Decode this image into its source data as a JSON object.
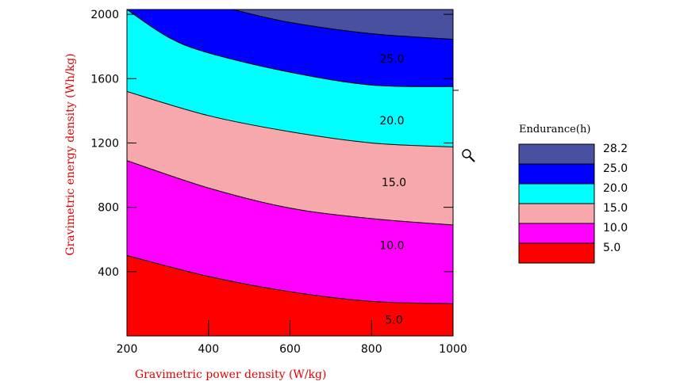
{
  "chart_data": {
    "type": "contour",
    "title": "",
    "xlabel": "Gravimetric power density (W/kg)",
    "ylabel": "Gravimetric energy density (Wh/kg)",
    "xlim": [
      200,
      1000
    ],
    "ylim": [
      0,
      2030
    ],
    "xticks": [
      200,
      400,
      600,
      800,
      1000
    ],
    "yticks": [
      400,
      800,
      1200,
      1600,
      2000
    ],
    "contour_levels": [
      5.0,
      10.0,
      15.0,
      20.0,
      25.0,
      28.2
    ],
    "contour_lines": [
      {
        "level": 5.0,
        "label": "",
        "points": [
          [
            200,
            500
          ],
          [
            400,
            370
          ],
          [
            600,
            275
          ],
          [
            800,
            215
          ],
          [
            1000,
            200
          ]
        ]
      },
      {
        "level": 10.0,
        "label": "10.0",
        "points": [
          [
            200,
            1090
          ],
          [
            400,
            920
          ],
          [
            600,
            795
          ],
          [
            800,
            730
          ],
          [
            1000,
            690
          ]
        ]
      },
      {
        "level": 15.0,
        "label": "15.0",
        "points": [
          [
            200,
            1520
          ],
          [
            400,
            1370
          ],
          [
            600,
            1270
          ],
          [
            800,
            1200
          ],
          [
            1000,
            1175
          ]
        ]
      },
      {
        "level": 20.0,
        "label": "20.0",
        "points": [
          [
            200,
            2030
          ],
          [
            300,
            1860
          ],
          [
            400,
            1760
          ],
          [
            600,
            1640
          ],
          [
            800,
            1560
          ],
          [
            1000,
            1550
          ]
        ]
      },
      {
        "level": 25.0,
        "label": "",
        "points": [
          [
            460,
            2030
          ],
          [
            600,
            1950
          ],
          [
            800,
            1880
          ],
          [
            1000,
            1845
          ]
        ]
      }
    ],
    "contour_labels": [
      {
        "text": "25.0",
        "x": 850,
        "y": 1720
      },
      {
        "text": "20.0",
        "x": 850,
        "y": 1335
      },
      {
        "text": "15.0",
        "x": 855,
        "y": 950
      },
      {
        "text": "10.0",
        "x": 850,
        "y": 560
      },
      {
        "text": "5.0",
        "x": 855,
        "y": 95
      }
    ],
    "legend": {
      "title": "Endurance(h)",
      "position": "right",
      "bands": [
        {
          "from": 25.0,
          "to": 28.2,
          "color": "#4a50a0"
        },
        {
          "from": 20.0,
          "to": 25.0,
          "color": "#0000ff"
        },
        {
          "from": 15.0,
          "to": 20.0,
          "color": "#00ffff"
        },
        {
          "from": 10.0,
          "to": 15.0,
          "color": "#f7a8ac"
        },
        {
          "from": 5.0,
          "to": 10.0,
          "color": "#ff00ff"
        },
        {
          "from": 0.0,
          "to": 5.0,
          "color": "#ff0000"
        }
      ],
      "tick_labels": [
        "28.2",
        "25.0",
        "20.0",
        "15.0",
        "10.0",
        "5.0"
      ]
    },
    "band_colors": [
      "#ff0000",
      "#ff00ff",
      "#f7a8ac",
      "#00ffff",
      "#0000ff",
      "#4a50a0"
    ],
    "label_color": "#e00000"
  },
  "cursor_icon": "magnifier-icon"
}
